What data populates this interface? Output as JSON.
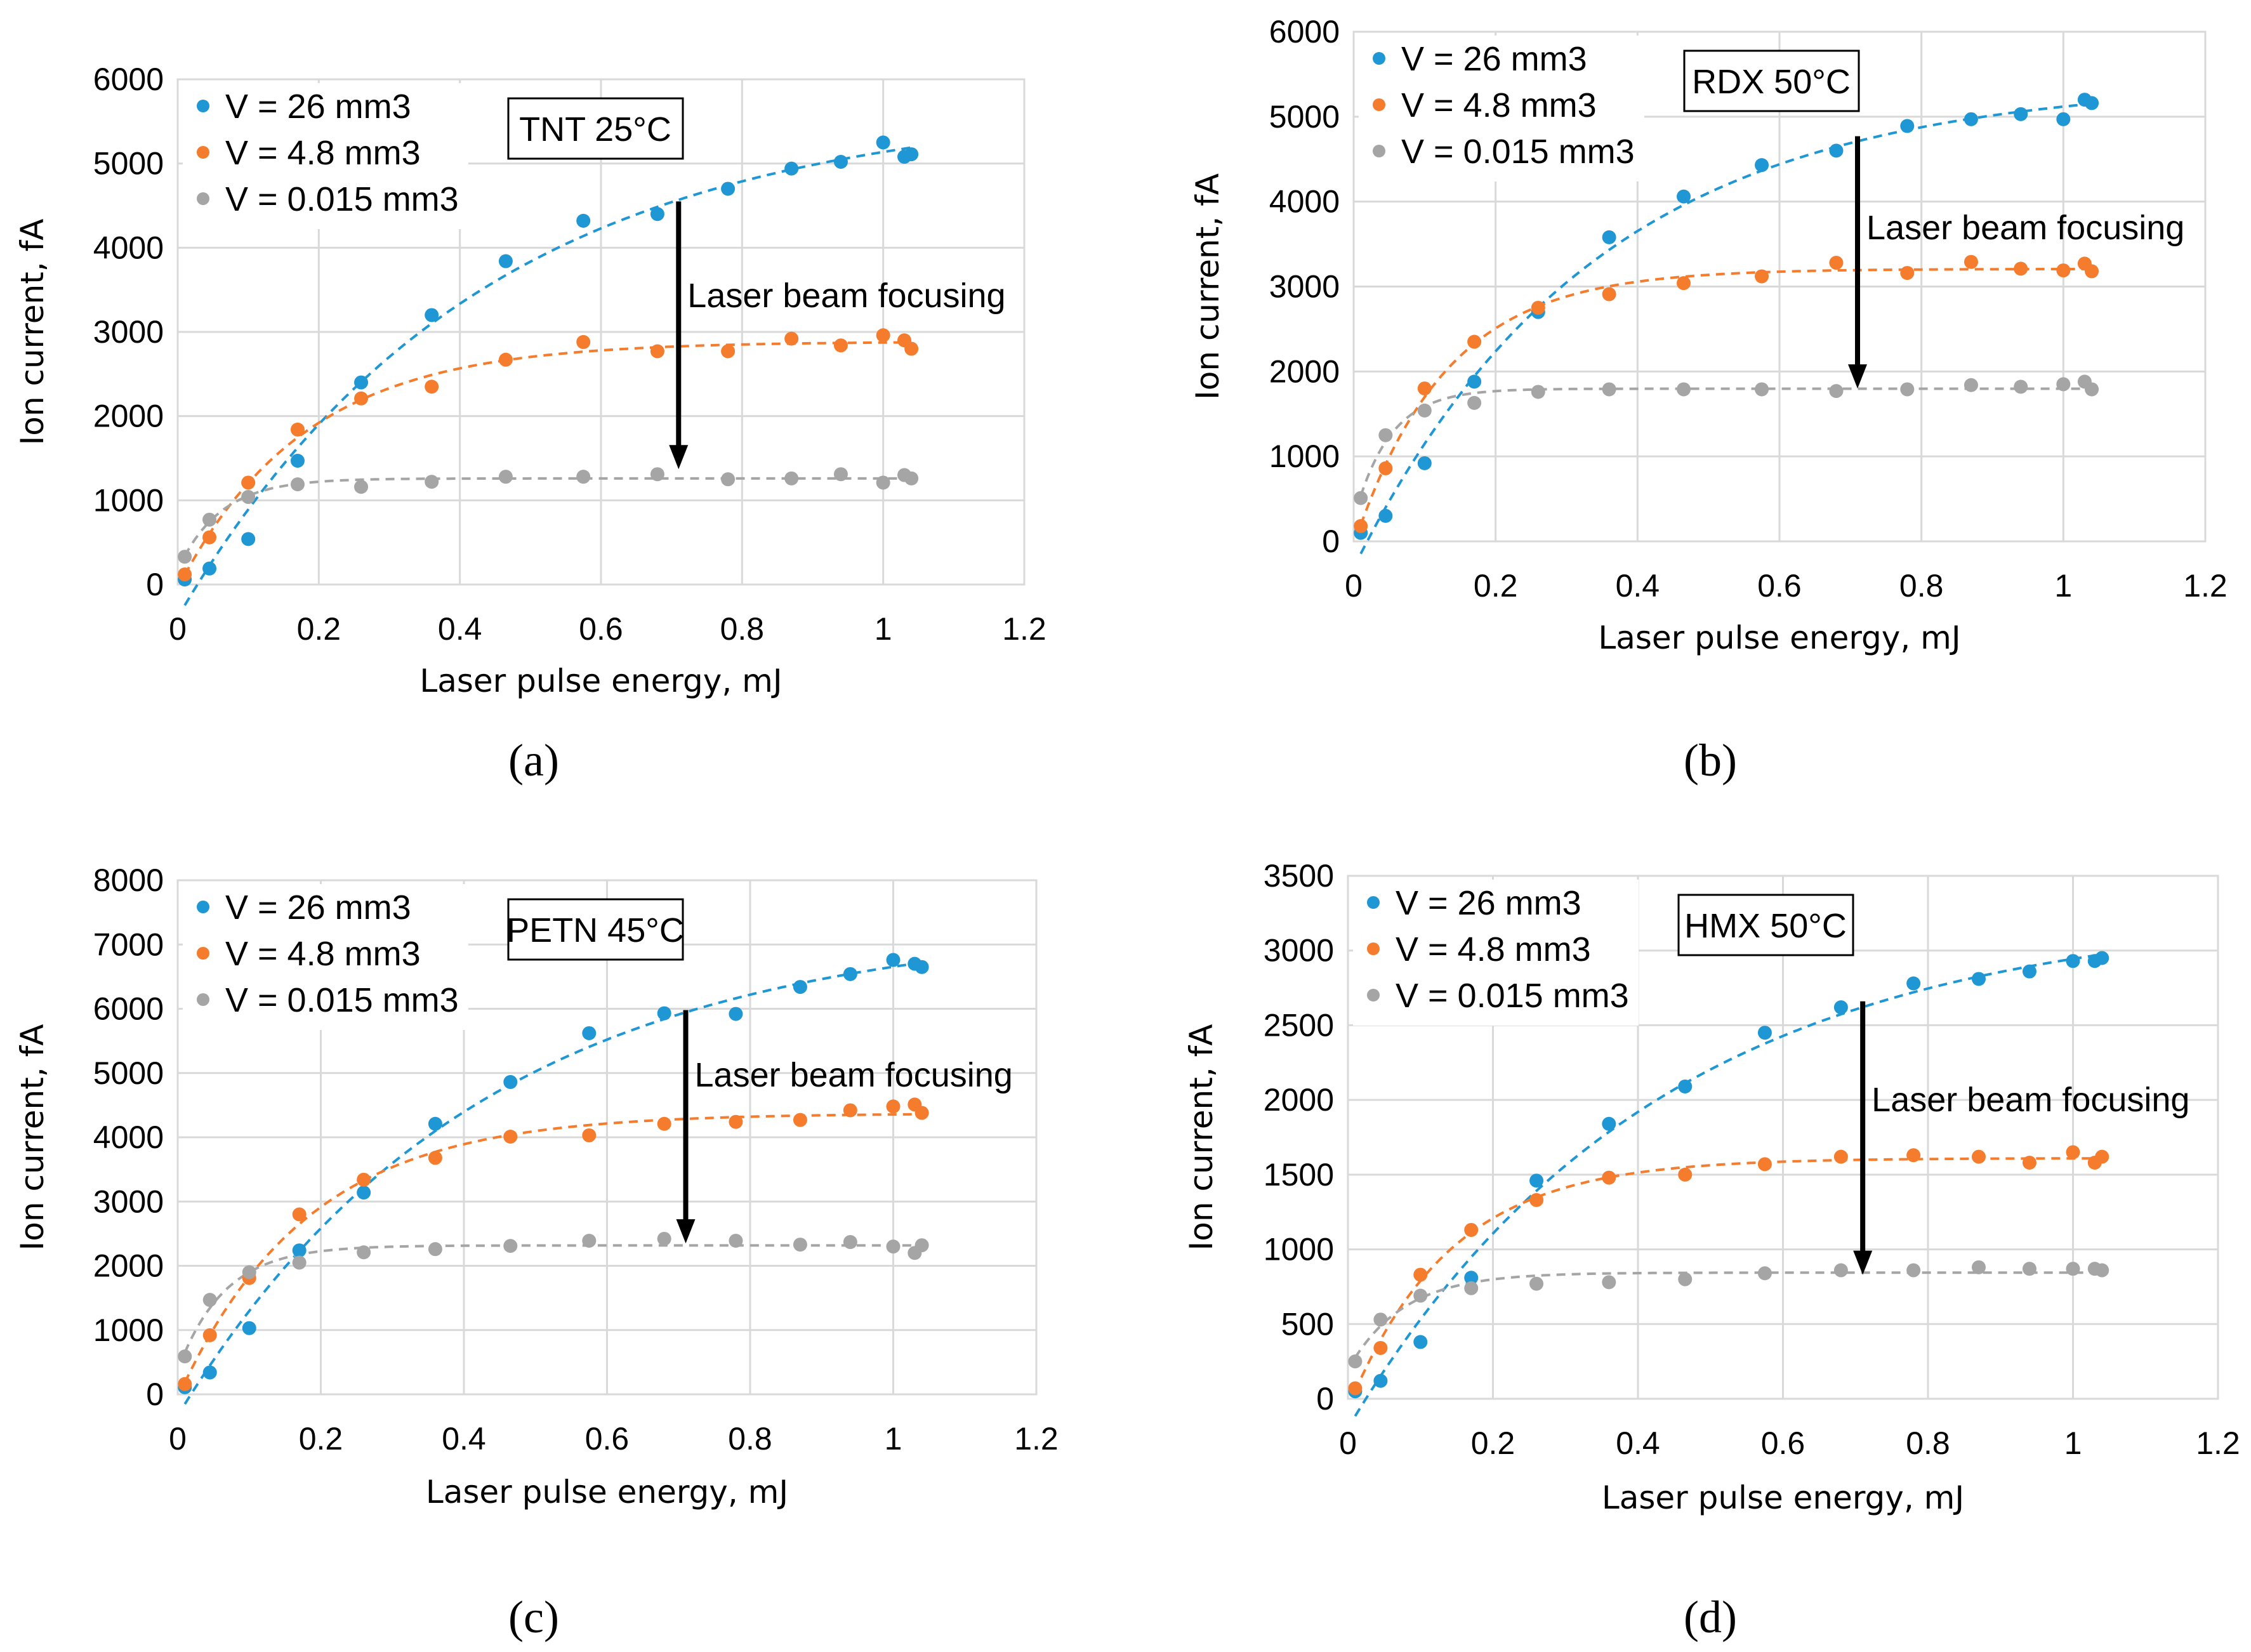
{
  "chart_data": [
    {
      "panel": "(a)",
      "type": "scatter",
      "title": "TNT 25°C",
      "xlabel": "Laser pulse energy, mJ",
      "ylabel": "Ion current, fA",
      "xlim": [
        0,
        1.2
      ],
      "ylim": [
        0,
        6000
      ],
      "xticks": [
        "0",
        "0.2",
        "0.4",
        "0.6",
        "0.8",
        "1",
        "1.2"
      ],
      "yticks": [
        "0",
        "1000",
        "2000",
        "3000",
        "4000",
        "5000",
        "6000"
      ],
      "grid": true,
      "legend_position": "top-left",
      "trendline": "dashed",
      "annotation": {
        "text": "Laser beam focusing",
        "arrow_x": 0.71,
        "arrow_from": 4550,
        "arrow_to": 1370,
        "text_y": 3430
      },
      "x": [
        0.01,
        0.045,
        0.1,
        0.17,
        0.26,
        0.36,
        0.465,
        0.575,
        0.68,
        0.78,
        0.87,
        0.94,
        1.0,
        1.03,
        1.04
      ],
      "series": [
        {
          "name": "V = 26 mm3",
          "color": "#1f97d4",
          "values": [
            60,
            190,
            540,
            1470,
            2400,
            3200,
            3840,
            4320,
            4400,
            4700,
            4940,
            5020,
            5250,
            5080,
            5110
          ]
        },
        {
          "name": "V = 4.8 mm3",
          "color": "#f47c2c",
          "values": [
            120,
            560,
            1210,
            1840,
            2210,
            2350,
            2670,
            2880,
            2770,
            2770,
            2920,
            2840,
            2960,
            2900,
            2800
          ]
        },
        {
          "name": "V = 0.015 mm3",
          "color": "#a5a5a5",
          "values": [
            330,
            770,
            1040,
            1190,
            1160,
            1220,
            1280,
            1280,
            1310,
            1250,
            1260,
            1310,
            1210,
            1300,
            1260
          ]
        }
      ]
    },
    {
      "panel": "(b)",
      "type": "scatter",
      "title": "RDX 50°C",
      "xlabel": "Laser pulse energy, mJ",
      "ylabel": "Ion current, fA",
      "xlim": [
        0,
        1.2
      ],
      "ylim": [
        0,
        6000
      ],
      "xticks": [
        "0",
        "0.2",
        "0.4",
        "0.6",
        "0.8",
        "1",
        "1.2"
      ],
      "yticks": [
        "0",
        "1000",
        "2000",
        "3000",
        "4000",
        "5000",
        "6000"
      ],
      "grid": true,
      "legend_position": "top-left",
      "trendline": "dashed",
      "annotation": {
        "text": "Laser beam focusing",
        "arrow_x": 0.71,
        "arrow_from": 4770,
        "arrow_to": 1800,
        "text_y": 3690
      },
      "x": [
        0.01,
        0.045,
        0.1,
        0.17,
        0.26,
        0.36,
        0.465,
        0.575,
        0.68,
        0.78,
        0.87,
        0.94,
        1.0,
        1.03,
        1.04
      ],
      "series": [
        {
          "name": "V = 26 mm3",
          "color": "#1f97d4",
          "values": [
            100,
            300,
            920,
            1880,
            2700,
            3580,
            4060,
            4430,
            4600,
            4890,
            4970,
            5030,
            4970,
            5200,
            5160
          ]
        },
        {
          "name": "V = 4.8 mm3",
          "color": "#f47c2c",
          "values": [
            180,
            860,
            1800,
            2350,
            2750,
            2910,
            3040,
            3120,
            3280,
            3160,
            3290,
            3210,
            3190,
            3270,
            3180
          ]
        },
        {
          "name": "V = 0.015 mm3",
          "color": "#a5a5a5",
          "values": [
            510,
            1250,
            1540,
            1630,
            1760,
            1790,
            1790,
            1790,
            1770,
            1790,
            1840,
            1820,
            1850,
            1880,
            1790
          ]
        }
      ]
    },
    {
      "panel": "(c)",
      "type": "scatter",
      "title": "PETN 45°C",
      "xlabel": "Laser pulse energy, mJ",
      "ylabel": "Ion current, fA",
      "xlim": [
        0,
        1.2
      ],
      "ylim": [
        0,
        8000
      ],
      "xticks": [
        "0",
        "0.2",
        "0.4",
        "0.6",
        "0.8",
        "1",
        "1.2"
      ],
      "yticks": [
        "0",
        "1000",
        "2000",
        "3000",
        "4000",
        "5000",
        "6000",
        "7000",
        "8000"
      ],
      "grid": true,
      "legend_position": "top-left",
      "trendline": "dashed",
      "annotation": {
        "text": "Laser beam focusing",
        "arrow_x": 0.71,
        "arrow_from": 5980,
        "arrow_to": 2350,
        "text_y": 4970
      },
      "x": [
        0.01,
        0.045,
        0.1,
        0.17,
        0.26,
        0.36,
        0.465,
        0.575,
        0.68,
        0.78,
        0.87,
        0.94,
        1.0,
        1.03,
        1.04
      ],
      "series": [
        {
          "name": "V = 26 mm3",
          "color": "#1f97d4",
          "values": [
            110,
            340,
            1030,
            2240,
            3140,
            4210,
            4860,
            5620,
            5930,
            5920,
            6340,
            6540,
            6760,
            6700,
            6650
          ]
        },
        {
          "name": "V = 4.8 mm3",
          "color": "#f47c2c",
          "values": [
            160,
            920,
            1810,
            2800,
            3340,
            3680,
            4010,
            4030,
            4210,
            4240,
            4270,
            4420,
            4480,
            4510,
            4380
          ]
        },
        {
          "name": "V = 0.015 mm3",
          "color": "#a5a5a5",
          "values": [
            590,
            1470,
            1900,
            2050,
            2210,
            2260,
            2310,
            2390,
            2420,
            2390,
            2330,
            2370,
            2300,
            2200,
            2320
          ]
        }
      ]
    },
    {
      "panel": "(d)",
      "type": "scatter",
      "title": "HMX 50°C",
      "xlabel": "Laser pulse energy, mJ",
      "ylabel": "Ion current, fA",
      "xlim": [
        0,
        1.2
      ],
      "ylim": [
        0,
        3500
      ],
      "xticks": [
        "0",
        "0.2",
        "0.4",
        "0.6",
        "0.8",
        "1",
        "1.2"
      ],
      "yticks": [
        "0",
        "500",
        "1000",
        "1500",
        "2000",
        "2500",
        "3000",
        "3500"
      ],
      "grid": true,
      "legend_position": "top-left",
      "trendline": "dashed",
      "annotation": {
        "text": "Laser beam focusing",
        "arrow_x": 0.71,
        "arrow_from": 2660,
        "arrow_to": 830,
        "text_y": 2000
      },
      "x": [
        0.01,
        0.045,
        0.1,
        0.17,
        0.26,
        0.36,
        0.465,
        0.575,
        0.68,
        0.78,
        0.87,
        0.94,
        1.0,
        1.03,
        1.04
      ],
      "series": [
        {
          "name": "V = 26 mm3",
          "color": "#1f97d4",
          "values": [
            50,
            120,
            380,
            810,
            1460,
            1840,
            2090,
            2450,
            2620,
            2780,
            2810,
            2860,
            2930,
            2930,
            2950
          ]
        },
        {
          "name": "V = 4.8 mm3",
          "color": "#f47c2c",
          "values": [
            70,
            340,
            830,
            1130,
            1330,
            1480,
            1500,
            1570,
            1620,
            1630,
            1620,
            1580,
            1650,
            1580,
            1620
          ]
        },
        {
          "name": "V = 0.015 mm3",
          "color": "#a5a5a5",
          "values": [
            250,
            530,
            690,
            740,
            770,
            780,
            800,
            840,
            860,
            860,
            880,
            870,
            870,
            870,
            860
          ]
        }
      ]
    }
  ]
}
